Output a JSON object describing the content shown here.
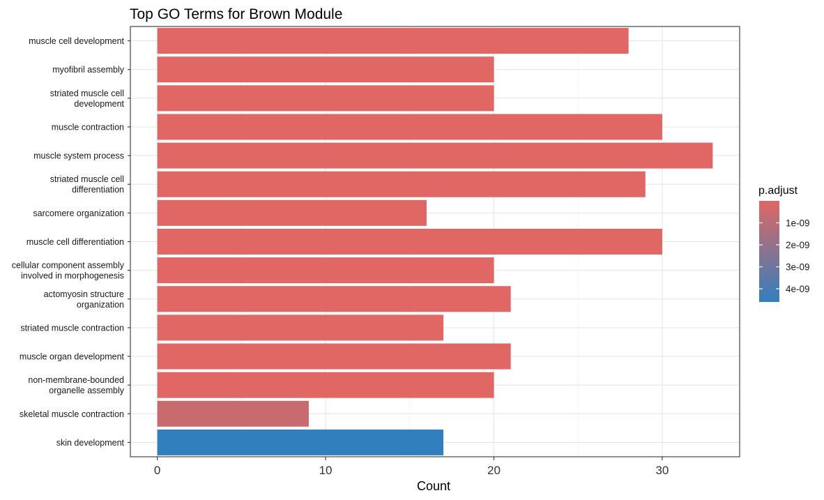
{
  "chart_data": {
    "type": "bar",
    "orientation": "horizontal",
    "title": "Top GO Terms for Brown Module",
    "xlabel": "Count",
    "ylabel": "",
    "xlim": [
      -1.6,
      34.6
    ],
    "x_ticks": [
      "0",
      "10",
      "20",
      "30"
    ],
    "grid": true,
    "categories": [
      "muscle cell development",
      "myofibril assembly",
      "striated muscle cell\ndevelopment",
      "muscle contraction",
      "muscle system process",
      "striated muscle cell\ndifferentiation",
      "sarcomere organization",
      "muscle cell differentiation",
      "cellular component assembly\ninvolved in morphogenesis",
      "actomyosin structure\norganization",
      "striated muscle contraction",
      "muscle organ development",
      "non-membrane-bounded\norganelle assembly",
      "skeletal muscle contraction",
      "skin development"
    ],
    "values": [
      28,
      20,
      20,
      30,
      33,
      29,
      16,
      30,
      20,
      21,
      17,
      21,
      20,
      9,
      17
    ],
    "p_adjust": [
      1e-13,
      1e-13,
      1e-13,
      1e-13,
      1e-13,
      1e-13,
      1e-13,
      1e-13,
      1e-13,
      1e-13,
      1e-13,
      1e-13,
      1e-13,
      6e-10,
      4.6e-09
    ],
    "legend": {
      "title": "p.adjust",
      "placement": "right",
      "range": [
        0,
        4.6e-09
      ],
      "low_color": "#e06763",
      "high_color": "#327fbe",
      "ticks": [
        1e-09,
        2e-09,
        3e-09,
        4e-09
      ],
      "tick_labels": [
        "1e-09",
        "2e-09",
        "3e-09",
        "4e-09"
      ]
    }
  }
}
